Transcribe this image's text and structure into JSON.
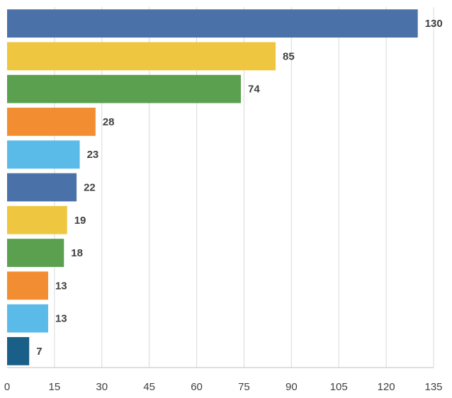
{
  "chart_data": {
    "type": "bar",
    "orientation": "horizontal",
    "title": "",
    "xlabel": "",
    "ylabel": "",
    "xlim": [
      0,
      135
    ],
    "x_ticks": [
      0,
      15,
      30,
      45,
      60,
      75,
      90,
      105,
      120,
      135
    ],
    "grid": true,
    "legend": "none",
    "values": [
      130,
      85,
      74,
      28,
      23,
      22,
      19,
      18,
      13,
      13,
      7
    ],
    "colors": [
      "#4a72a8",
      "#efc640",
      "#5aa04e",
      "#f28e31",
      "#5bbbe8",
      "#4a72a8",
      "#efc640",
      "#5aa04e",
      "#f28e31",
      "#5bbbe8",
      "#1a5f87"
    ]
  }
}
